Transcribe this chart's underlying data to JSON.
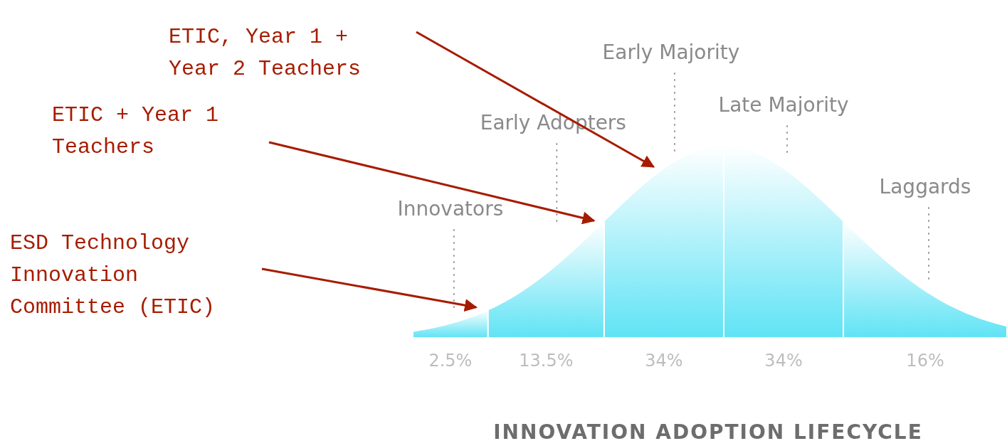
{
  "chart_data": {
    "type": "other",
    "title": "INNOVATION ADOPTION LIFECYCLE",
    "categories": [
      "Innovators",
      "Early Adopters",
      "Early Majority",
      "Late Majority",
      "Laggards"
    ],
    "values": [
      2.5,
      13.5,
      34,
      34,
      16
    ],
    "value_labels": [
      "2.5%",
      "13.5%",
      "34%",
      "34%",
      "16%"
    ],
    "color": "#5fe3f5",
    "annotations": [
      {
        "text": "ETIC, Year 1 + Year 2 Teachers",
        "x": "Early Majority"
      },
      {
        "text": "ETIC + Year 1 Teachers",
        "x": "Early Adopters"
      },
      {
        "text": "ESD Technology Innovation Committee (ETIC)",
        "x": "Innovators"
      }
    ]
  }
}
